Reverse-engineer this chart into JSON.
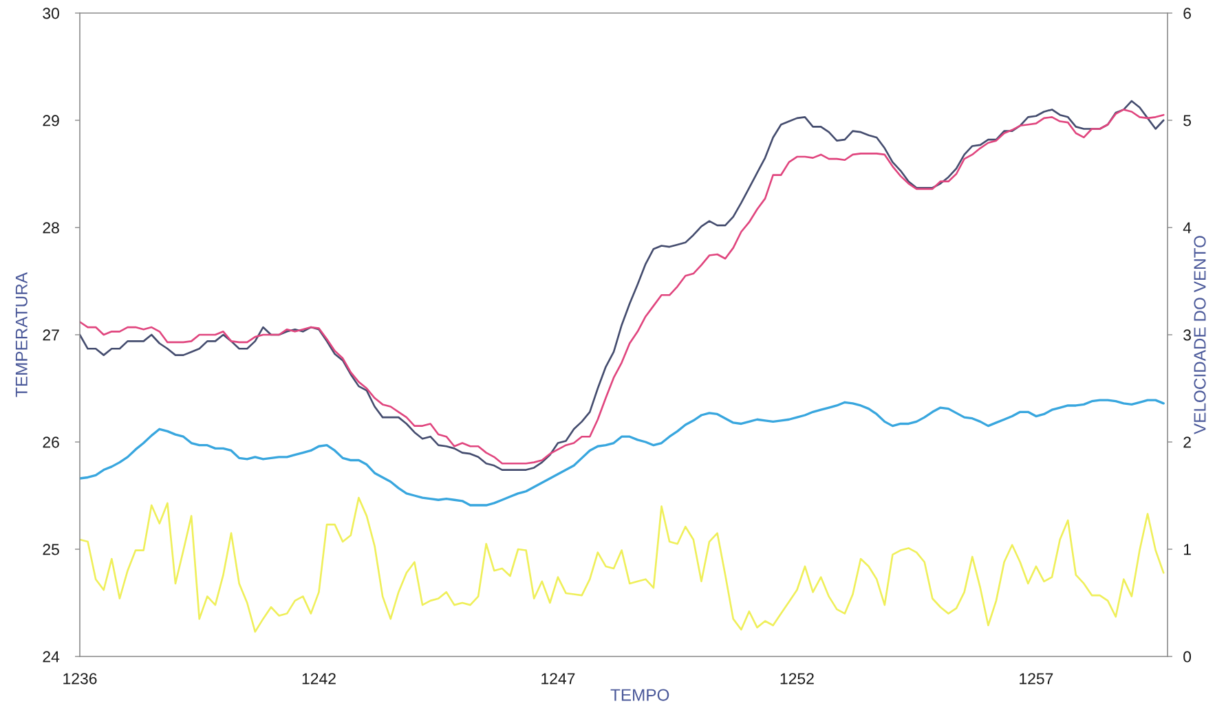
{
  "chart_data": {
    "type": "line",
    "xlabel": "TEMPO",
    "ylabel": "TEMPERATURA",
    "y2label": "VELOCIDADE DO VENTO",
    "categories": [
      "1236",
      null,
      null,
      null,
      null,
      null,
      null,
      null,
      null,
      null,
      null,
      null,
      null,
      null,
      null,
      null,
      null,
      null,
      null,
      null,
      null,
      null,
      null,
      null,
      null,
      null,
      null,
      null,
      null,
      null,
      "1242",
      null,
      null,
      null,
      null,
      null,
      null,
      null,
      null,
      null,
      null,
      null,
      null,
      null,
      null,
      null,
      null,
      null,
      null,
      null,
      null,
      null,
      null,
      null,
      null,
      null,
      null,
      null,
      null,
      null,
      "1247",
      null,
      null,
      null,
      null,
      null,
      null,
      null,
      null,
      null,
      null,
      null,
      null,
      null,
      null,
      null,
      null,
      null,
      null,
      null,
      null,
      null,
      null,
      null,
      null,
      null,
      null,
      null,
      null,
      null,
      "1252",
      null,
      null,
      null,
      null,
      null,
      null,
      null,
      null,
      null,
      null,
      null,
      null,
      null,
      null,
      null,
      null,
      null,
      null,
      null,
      null,
      null,
      null,
      null,
      null,
      null,
      null,
      null,
      null,
      null,
      "1257",
      null,
      null,
      null,
      null,
      null,
      null,
      null,
      null,
      null,
      null,
      null,
      null,
      null,
      null,
      null,
      null
    ],
    "series": [
      {
        "color": "#444c6e",
        "values": [
          27.0,
          26.87,
          26.87,
          26.81,
          26.87,
          26.87,
          26.94,
          26.94,
          26.94,
          27.0,
          26.92,
          26.87,
          26.81,
          26.81,
          26.84,
          26.87,
          26.94,
          26.94,
          27.0,
          26.94,
          26.87,
          26.87,
          26.94,
          27.07,
          27.0,
          27.0,
          27.03,
          27.05,
          27.03,
          27.07,
          27.05,
          26.94,
          26.82,
          26.76,
          26.63,
          26.52,
          26.48,
          26.33,
          26.23,
          26.23,
          26.23,
          26.17,
          26.09,
          26.03,
          26.05,
          25.97,
          25.96,
          25.94,
          25.9,
          25.89,
          25.86,
          25.8,
          25.78,
          25.74,
          25.74,
          25.74,
          25.74,
          25.76,
          25.81,
          25.88,
          25.99,
          26.01,
          26.12,
          26.19,
          26.28,
          26.5,
          26.7,
          26.84,
          27.09,
          27.29,
          27.47,
          27.66,
          27.8,
          27.83,
          27.82,
          27.84,
          27.86,
          27.93,
          28.01,
          28.06,
          28.02,
          28.02,
          28.1,
          28.23,
          28.37,
          28.51,
          28.65,
          28.84,
          28.96,
          28.99,
          29.02,
          29.03,
          28.94,
          28.94,
          28.89,
          28.81,
          28.82,
          28.9,
          28.89,
          28.86,
          28.84,
          28.74,
          28.61,
          28.53,
          28.43,
          28.37,
          28.37,
          28.37,
          28.41,
          28.47,
          28.55,
          28.68,
          28.76,
          28.77,
          28.82,
          28.82,
          28.9,
          28.9,
          28.95,
          29.03,
          29.04,
          29.08,
          29.1,
          29.05,
          29.03,
          28.94,
          28.92,
          28.92,
          28.92,
          28.96,
          29.07,
          29.1,
          29.18,
          29.12,
          29.02,
          28.92,
          29.0
        ]
      },
      {
        "color": "#e0457e",
        "values": [
          27.12,
          27.07,
          27.07,
          27.0,
          27.03,
          27.03,
          27.07,
          27.07,
          27.05,
          27.07,
          27.03,
          26.93,
          26.93,
          26.93,
          26.94,
          27.0,
          27.0,
          27.0,
          27.03,
          26.94,
          26.93,
          26.93,
          26.98,
          27.0,
          27.0,
          27.0,
          27.05,
          27.03,
          27.05,
          27.07,
          27.06,
          26.96,
          26.85,
          26.78,
          26.65,
          26.56,
          26.5,
          26.41,
          26.35,
          26.33,
          26.28,
          26.23,
          26.15,
          26.15,
          26.17,
          26.07,
          26.05,
          25.96,
          25.99,
          25.96,
          25.96,
          25.9,
          25.86,
          25.8,
          25.8,
          25.8,
          25.8,
          25.81,
          25.83,
          25.89,
          25.93,
          25.97,
          25.99,
          26.05,
          26.05,
          26.21,
          26.41,
          26.6,
          26.74,
          26.92,
          27.03,
          27.17,
          27.27,
          27.37,
          27.37,
          27.45,
          27.55,
          27.57,
          27.65,
          27.74,
          27.75,
          27.71,
          27.81,
          27.96,
          28.05,
          28.17,
          28.27,
          28.49,
          28.49,
          28.61,
          28.66,
          28.66,
          28.65,
          28.68,
          28.64,
          28.64,
          28.63,
          28.68,
          28.69,
          28.69,
          28.69,
          28.68,
          28.57,
          28.48,
          28.41,
          28.36,
          28.36,
          28.36,
          28.43,
          28.43,
          28.5,
          28.64,
          28.68,
          28.74,
          28.79,
          28.81,
          28.88,
          28.91,
          28.95,
          28.96,
          28.97,
          29.02,
          29.03,
          28.99,
          28.98,
          28.88,
          28.84,
          28.92,
          28.92,
          28.96,
          29.06,
          29.1,
          29.08,
          29.03,
          29.02,
          29.03,
          29.05
        ]
      },
      {
        "color": "#38a6de",
        "values": [
          25.66,
          25.67,
          25.69,
          25.74,
          25.77,
          25.81,
          25.86,
          25.93,
          25.99,
          26.06,
          26.12,
          26.1,
          26.07,
          26.05,
          25.99,
          25.97,
          25.97,
          25.94,
          25.94,
          25.92,
          25.85,
          25.84,
          25.86,
          25.84,
          25.85,
          25.86,
          25.86,
          25.88,
          25.9,
          25.92,
          25.96,
          25.97,
          25.92,
          25.85,
          25.83,
          25.83,
          25.79,
          25.71,
          25.67,
          25.63,
          25.57,
          25.52,
          25.5,
          25.48,
          25.47,
          25.46,
          25.47,
          25.46,
          25.45,
          25.41,
          25.41,
          25.41,
          25.43,
          25.46,
          25.49,
          25.52,
          25.54,
          25.58,
          25.62,
          25.66,
          25.7,
          25.74,
          25.78,
          25.85,
          25.92,
          25.96,
          25.97,
          25.99,
          26.05,
          26.05,
          26.02,
          26.0,
          25.97,
          25.99,
          26.05,
          26.1,
          26.16,
          26.2,
          26.25,
          26.27,
          26.26,
          26.22,
          26.18,
          26.17,
          26.19,
          26.21,
          26.2,
          26.19,
          26.2,
          26.21,
          26.23,
          26.25,
          26.28,
          26.3,
          26.32,
          26.34,
          26.37,
          26.36,
          26.34,
          26.31,
          26.26,
          26.19,
          26.15,
          26.17,
          26.17,
          26.19,
          26.23,
          26.28,
          26.32,
          26.31,
          26.27,
          26.23,
          26.22,
          26.19,
          26.15,
          26.18,
          26.21,
          26.24,
          26.28,
          26.28,
          26.24,
          26.26,
          26.3,
          26.32,
          26.34,
          26.34,
          26.35,
          26.38,
          26.39,
          26.39,
          26.38,
          26.36,
          26.35,
          26.37,
          26.39,
          26.39,
          26.36
        ]
      },
      {
        "color": "#efef5a",
        "axis": "y2",
        "values": [
          1.09,
          1.07,
          0.72,
          0.62,
          0.91,
          0.54,
          0.8,
          0.99,
          0.99,
          1.41,
          1.24,
          1.43,
          0.68,
          0.99,
          1.31,
          0.35,
          0.56,
          0.48,
          0.76,
          1.15,
          0.68,
          0.5,
          0.23,
          0.35,
          0.46,
          0.38,
          0.4,
          0.52,
          0.56,
          0.4,
          0.6,
          1.23,
          1.23,
          1.07,
          1.13,
          1.48,
          1.31,
          1.03,
          0.56,
          0.35,
          0.6,
          0.78,
          0.88,
          0.48,
          0.52,
          0.54,
          0.6,
          0.48,
          0.5,
          0.48,
          0.56,
          1.05,
          0.8,
          0.82,
          0.75,
          1.0,
          0.99,
          0.54,
          0.7,
          0.5,
          0.74,
          0.59,
          0.58,
          0.57,
          0.72,
          0.97,
          0.84,
          0.82,
          0.99,
          0.68,
          0.7,
          0.72,
          0.64,
          1.4,
          1.07,
          1.05,
          1.21,
          1.09,
          0.7,
          1.07,
          1.15,
          0.76,
          0.35,
          0.25,
          0.42,
          0.27,
          0.33,
          0.29,
          0.4,
          0.51,
          0.62,
          0.84,
          0.6,
          0.74,
          0.56,
          0.44,
          0.4,
          0.58,
          0.91,
          0.84,
          0.72,
          0.48,
          0.95,
          0.99,
          1.01,
          0.97,
          0.88,
          0.54,
          0.46,
          0.4,
          0.45,
          0.6,
          0.93,
          0.64,
          0.29,
          0.52,
          0.88,
          1.04,
          0.88,
          0.68,
          0.84,
          0.7,
          0.74,
          1.09,
          1.27,
          0.76,
          0.68,
          0.57,
          0.57,
          0.52,
          0.37,
          0.72,
          0.56,
          0.99,
          1.33,
          0.99,
          0.78
        ]
      }
    ],
    "ylim": [
      24,
      30
    ],
    "yticks": [
      24,
      25,
      26,
      27,
      28,
      29,
      30
    ],
    "y2lim": [
      0,
      6
    ],
    "y2ticks": [
      0,
      1,
      2,
      3,
      4,
      5,
      6
    ],
    "grid": false,
    "marker": "none",
    "line_style": "solid"
  }
}
